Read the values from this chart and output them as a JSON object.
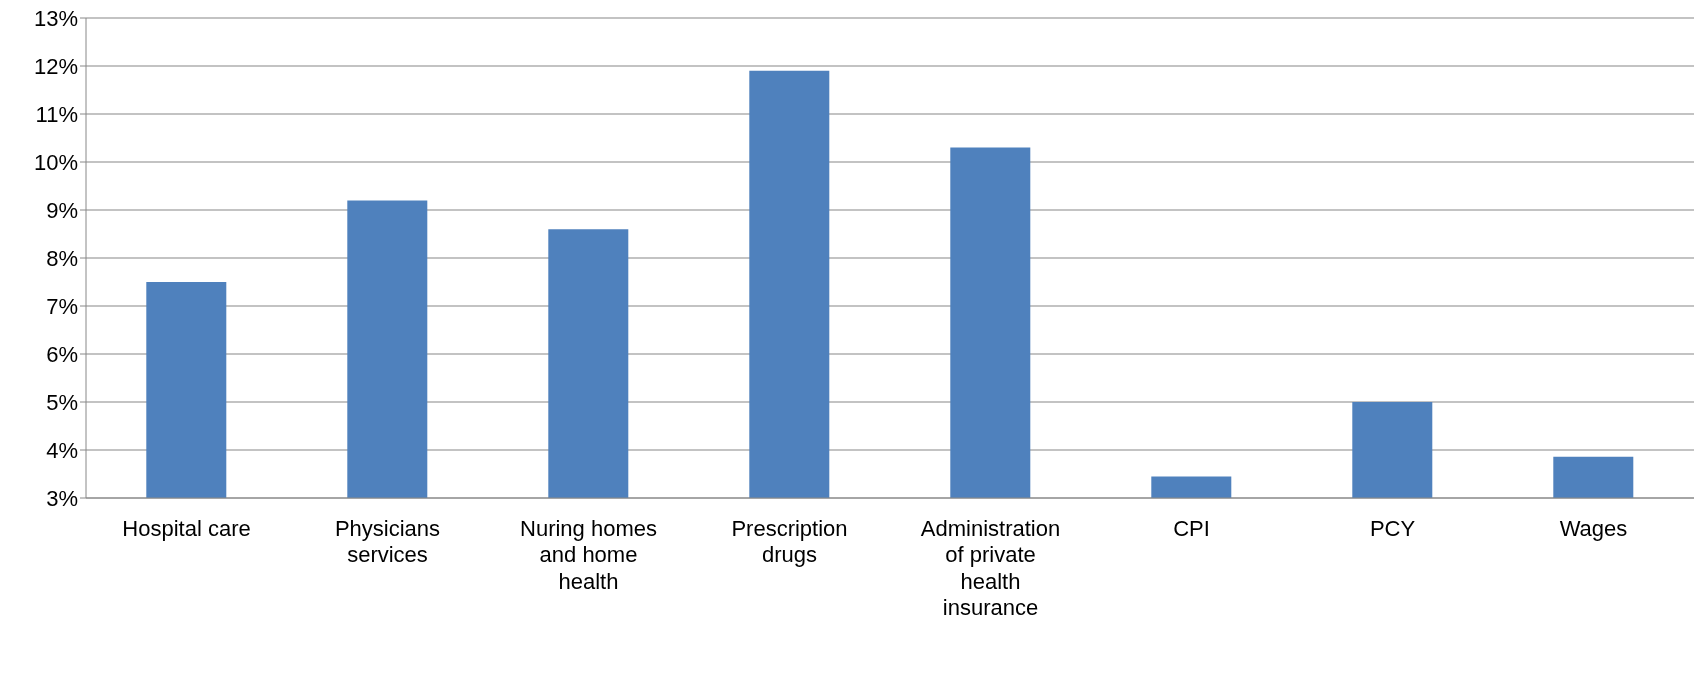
{
  "chart_data": {
    "type": "bar",
    "categories": [
      "Hospital care",
      "Physicians services",
      "Nuring homes and home health",
      "Prescription drugs",
      "Administration of private health insurance",
      "CPI",
      "PCY",
      "Wages"
    ],
    "values": [
      7.5,
      9.2,
      8.6,
      11.9,
      10.3,
      3.45,
      5.0,
      3.86
    ],
    "color": "#4f81bd",
    "ylim": [
      3,
      13
    ],
    "yticks": [
      {
        "value": 3,
        "label": "3%"
      },
      {
        "value": 4,
        "label": "4%"
      },
      {
        "value": 5,
        "label": "5%"
      },
      {
        "value": 6,
        "label": "6%"
      },
      {
        "value": 7,
        "label": "7%"
      },
      {
        "value": 8,
        "label": "8%"
      },
      {
        "value": 9,
        "label": "9%"
      },
      {
        "value": 10,
        "label": "10%"
      },
      {
        "value": 11,
        "label": "11%"
      },
      {
        "value": 12,
        "label": "12%"
      },
      {
        "value": 13,
        "label": "13%"
      }
    ],
    "grid": "y"
  }
}
